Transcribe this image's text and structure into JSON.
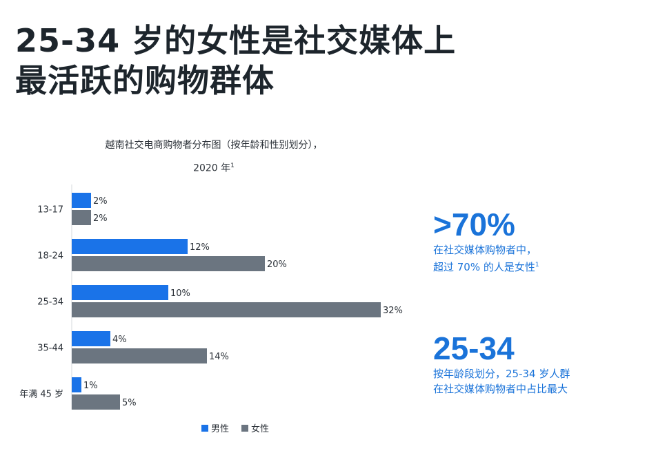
{
  "headline": {
    "line1": "25-34 岁的女性是社交媒体上",
    "line2": "最活跃的购物群体"
  },
  "chart_data": {
    "type": "bar",
    "orientation": "horizontal",
    "title_line1": "越南社交电商购物者分布图（按年龄和性别划分），",
    "title_line2": "2020 年",
    "title_footnote": "1",
    "categories": [
      "13-17",
      "18-24",
      "25-34",
      "35-44",
      "年满 45 岁"
    ],
    "series": [
      {
        "name": "男性",
        "color": "#1a73e8",
        "values": [
          2,
          12,
          10,
          4,
          1
        ]
      },
      {
        "name": "女性",
        "color": "#6b7580",
        "values": [
          2,
          20,
          32,
          14,
          5
        ]
      }
    ],
    "value_suffix": "%",
    "xlim": [
      0,
      32
    ],
    "legend_position": "bottom",
    "grid": false
  },
  "stats": [
    {
      "big": ">70%",
      "line1": "在社交媒体购物者中，",
      "line2": "超过 70% 的人是女性",
      "footnote": "1"
    },
    {
      "big": "25-34",
      "line1": "按年龄段划分，25-34 岁人群",
      "line2": "在社交媒体购物者中占比最大",
      "footnote": ""
    }
  ]
}
